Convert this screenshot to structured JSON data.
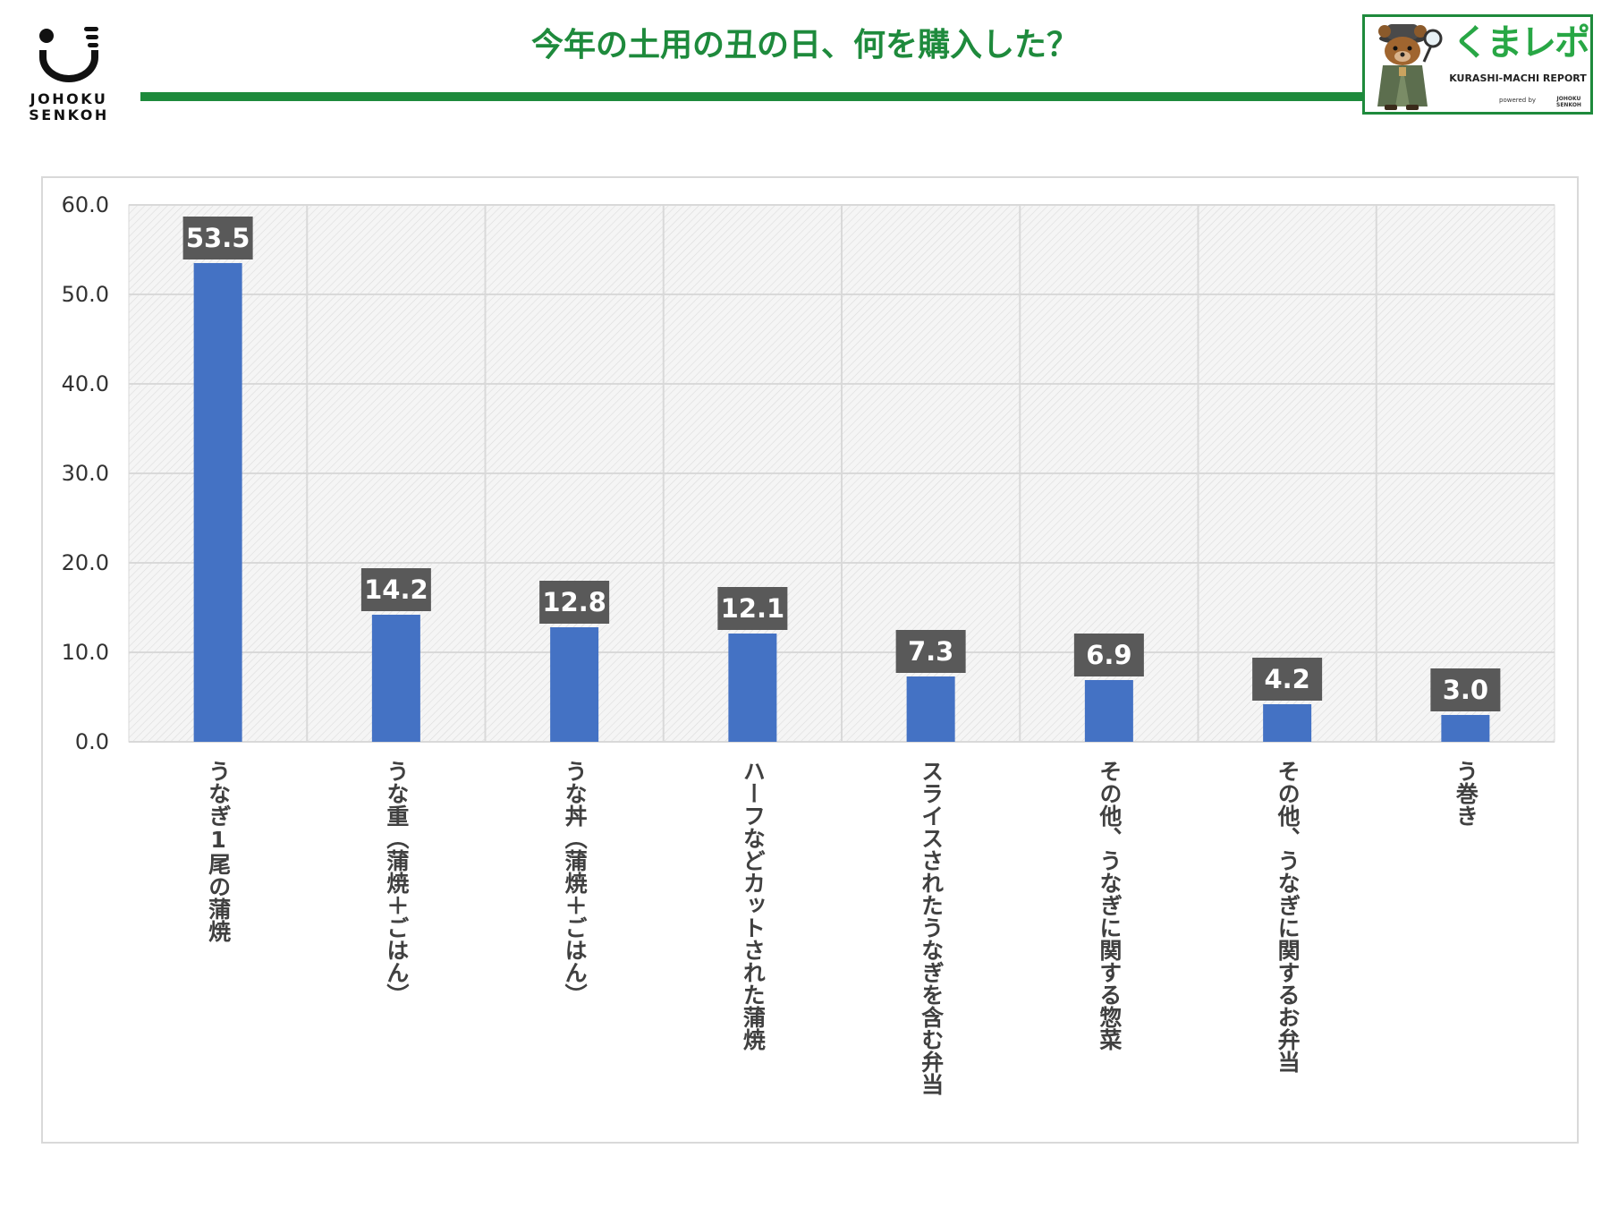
{
  "header": {
    "logo_text_line1": "JOHOKU",
    "logo_text_line2": "SENKOH",
    "title": "今年の土用の丑の日、何を購入した？",
    "accent_color": "#1e8a3c"
  },
  "badge": {
    "name": "くまレポ",
    "subtitle": "KURASHI-MACHI REPORT",
    "powered_by": "powered by",
    "powered_brand_line1": "JOHOKU",
    "powered_brand_line2": "SENKOH",
    "icon": "bear-detective-icon"
  },
  "chart_data": {
    "type": "bar",
    "categories": [
      "うなぎ1尾の蒲焼",
      "うな重（蒲焼＋ごはん）",
      "うな丼（蒲焼＋ごはん）",
      "ハーフなどカットされた蒲焼",
      "スライスされたうなぎを含む弁当",
      "その他、うなぎに関する惣菜",
      "その他、うなぎに関するお弁当",
      "う巻き"
    ],
    "values": [
      53.5,
      14.2,
      12.8,
      12.1,
      7.3,
      6.9,
      4.2,
      3.0
    ],
    "data_labels": [
      "53.5",
      "14.2",
      "12.8",
      "12.1",
      "7.3",
      "6.9",
      "4.2",
      "3.0"
    ],
    "ylim": [
      0,
      60
    ],
    "yticks": [
      "0.0",
      "10.0",
      "20.0",
      "30.0",
      "40.0",
      "50.0",
      "60.0"
    ],
    "grid": true,
    "bar_color": "#4472c4",
    "label_box_color": "#595959"
  }
}
